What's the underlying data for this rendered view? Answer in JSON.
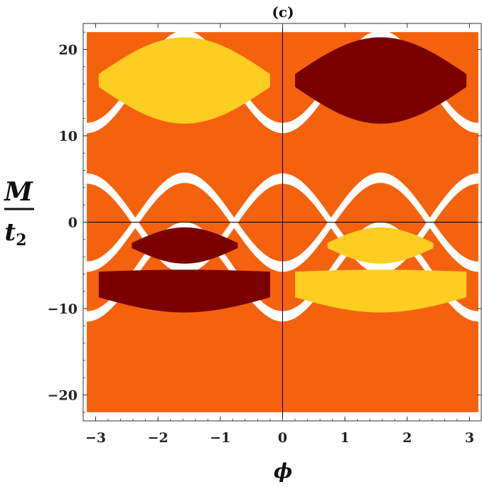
{
  "chart_data": {
    "type": "heatmap",
    "title": "(c)",
    "xlabel": "ϕ",
    "ylabel": {
      "numerator": "M",
      "denominator_base": "t",
      "denominator_sub": "2"
    },
    "xlim": [
      -3.2,
      3.2
    ],
    "ylim": [
      -23,
      23
    ],
    "data_extent": {
      "x": [
        -3.14159,
        3.14159
      ],
      "y": [
        -22,
        22
      ]
    },
    "xticks": [
      {
        "value": -3,
        "label": "−3"
      },
      {
        "value": -2,
        "label": "−2"
      },
      {
        "value": -1,
        "label": "−1"
      },
      {
        "value": 0,
        "label": "0"
      },
      {
        "value": 1,
        "label": "1"
      },
      {
        "value": 2,
        "label": "2"
      },
      {
        "value": 3,
        "label": "3"
      }
    ],
    "yticks": [
      {
        "value": -20,
        "label": "−20"
      },
      {
        "value": -10,
        "label": "−10"
      },
      {
        "value": 0,
        "label": "0"
      },
      {
        "value": 10,
        "label": "10"
      },
      {
        "value": 20,
        "label": "20"
      }
    ],
    "colors": {
      "background_phase": "#f5620e",
      "positive_phase": "#fdcd22",
      "negative_phase": "#7a0000",
      "gap": "#ffffff",
      "axis": "#000000"
    },
    "gap_bands": [
      {
        "center": 16.25,
        "amplitude": 5.35,
        "width": 1.2
      },
      {
        "center": 0.0,
        "amplitude": 5.15,
        "width": 1.2
      },
      {
        "center": -5.75,
        "amplitude": 5.15,
        "width": 1.2
      },
      {
        "center": -0.15,
        "amplitude": -5.2,
        "width": 1.2
      }
    ],
    "regions": [
      {
        "phase": "positive",
        "x_range": [
          -2.95,
          -0.2
        ],
        "y_center": 16.4,
        "half_height": 5.0,
        "flat_cap": 1.5
      },
      {
        "phase": "negative",
        "x_range": [
          0.2,
          2.95
        ],
        "y_center": 16.4,
        "half_height": 5.0,
        "flat_cap": 1.5
      },
      {
        "phase": "negative",
        "x_range": [
          -2.42,
          -0.72
        ],
        "y_center": -2.7,
        "half_height": 2.1,
        "flat_cap": 0.6
      },
      {
        "phase": "negative",
        "x_range": [
          -2.95,
          -0.2
        ],
        "y_center": -7.95,
        "half_height": 2.5,
        "flat_cap": 1.5,
        "top": -5.5
      },
      {
        "phase": "positive",
        "x_range": [
          0.72,
          2.42
        ],
        "y_center": -2.7,
        "half_height": 2.1,
        "flat_cap": 0.6
      },
      {
        "phase": "positive",
        "x_range": [
          0.2,
          2.95
        ],
        "y_center": -7.95,
        "half_height": 2.5,
        "flat_cap": 1.5,
        "top": -5.5
      }
    ]
  }
}
